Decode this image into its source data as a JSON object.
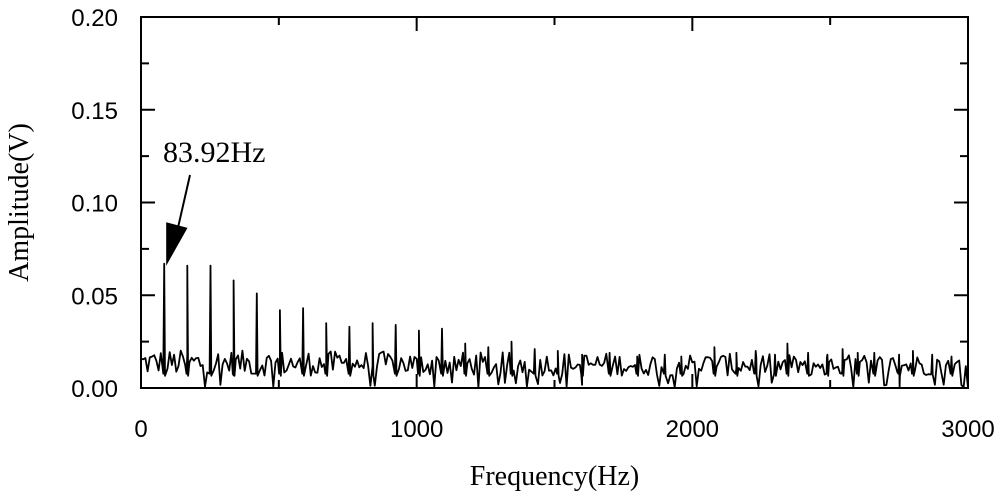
{
  "chart_data": {
    "type": "line",
    "xlabel": "Frequency(Hz)",
    "ylabel": "Amplitude(V)",
    "xlim": [
      0,
      3000
    ],
    "ylim": [
      0,
      0.2
    ],
    "xticks": [
      0,
      1000,
      2000,
      3000
    ],
    "xtick_labels": [
      "0",
      "1000",
      "2000",
      "3000"
    ],
    "yticks": [
      0,
      0.05,
      0.1,
      0.15,
      0.2
    ],
    "ytick_labels": [
      "0.00",
      "0.05",
      "0.10",
      "0.15",
      "0.20"
    ],
    "grid": false,
    "annotation": {
      "text": "83.92Hz",
      "x": 84,
      "y": 0.067
    },
    "peaks": [
      {
        "x": 84,
        "y": 0.067
      },
      {
        "x": 168,
        "y": 0.066
      },
      {
        "x": 252,
        "y": 0.066
      },
      {
        "x": 336,
        "y": 0.058
      },
      {
        "x": 420,
        "y": 0.051
      },
      {
        "x": 504,
        "y": 0.042
      },
      {
        "x": 588,
        "y": 0.043
      },
      {
        "x": 672,
        "y": 0.035
      },
      {
        "x": 756,
        "y": 0.033
      },
      {
        "x": 840,
        "y": 0.035
      },
      {
        "x": 924,
        "y": 0.034
      },
      {
        "x": 1008,
        "y": 0.031
      },
      {
        "x": 1092,
        "y": 0.032
      },
      {
        "x": 1176,
        "y": 0.024
      },
      {
        "x": 1260,
        "y": 0.022
      },
      {
        "x": 1344,
        "y": 0.025
      },
      {
        "x": 1428,
        "y": 0.021
      },
      {
        "x": 1512,
        "y": 0.02
      },
      {
        "x": 1600,
        "y": 0.018
      },
      {
        "x": 1700,
        "y": 0.019
      },
      {
        "x": 1800,
        "y": 0.017
      },
      {
        "x": 1900,
        "y": 0.018
      },
      {
        "x": 1960,
        "y": 0.017
      },
      {
        "x": 2080,
        "y": 0.022
      },
      {
        "x": 2160,
        "y": 0.019
      },
      {
        "x": 2230,
        "y": 0.02
      },
      {
        "x": 2300,
        "y": 0.018
      },
      {
        "x": 2345,
        "y": 0.024
      },
      {
        "x": 2420,
        "y": 0.019
      },
      {
        "x": 2490,
        "y": 0.018
      },
      {
        "x": 2545,
        "y": 0.021
      },
      {
        "x": 2600,
        "y": 0.019
      },
      {
        "x": 2660,
        "y": 0.019
      },
      {
        "x": 2750,
        "y": 0.018
      },
      {
        "x": 2800,
        "y": 0.02
      },
      {
        "x": 2870,
        "y": 0.018
      },
      {
        "x": 2940,
        "y": 0.017
      }
    ],
    "noise_floor": 0.011
  }
}
